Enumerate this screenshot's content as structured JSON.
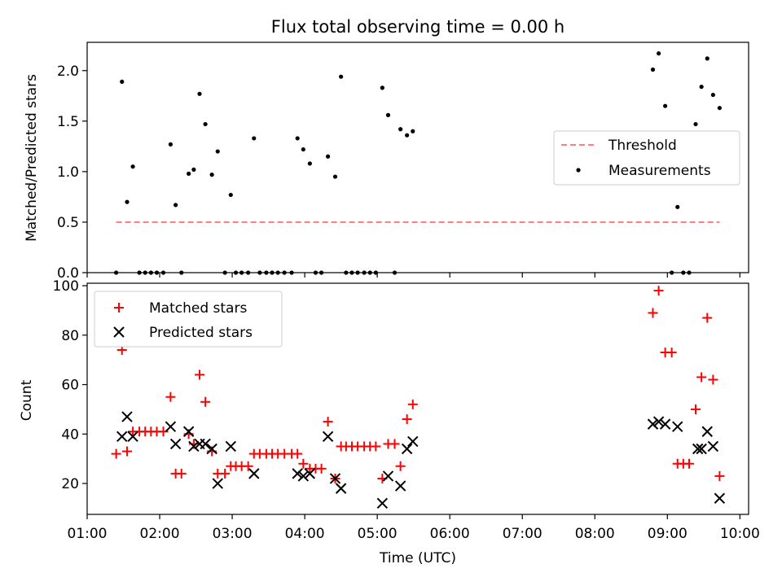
{
  "chart_data": [
    {
      "type": "line+scatter",
      "title": "Flux total observing time = 0.00 h",
      "ylabel": "Matched/Predicted stars",
      "ylim": [
        0,
        2.28
      ],
      "xlim": [
        1.0,
        10.12
      ],
      "yticks": [
        "0.0",
        "0.5",
        "1.0",
        "1.5",
        "2.0"
      ],
      "ytick_values": [
        0,
        0.5,
        1.0,
        1.5,
        2.0
      ],
      "legend": {
        "placement": "center-right",
        "threshold_label": "Threshold",
        "measurements_label": "Measurements"
      },
      "threshold": {
        "name": "Threshold",
        "value": 0.5,
        "x_start": 1.4,
        "x_end": 9.72,
        "color": "#ff7f7f",
        "style": "dashed"
      },
      "series": [
        {
          "name": "Measurements",
          "color": "#000000",
          "marker": "dot",
          "points": [
            [
              1.4,
              0
            ],
            [
              1.48,
              1.89
            ],
            [
              1.55,
              0.7
            ],
            [
              1.63,
              1.05
            ],
            [
              1.72,
              0
            ],
            [
              1.8,
              0
            ],
            [
              1.88,
              0
            ],
            [
              1.96,
              0
            ],
            [
              2.05,
              0
            ],
            [
              2.15,
              1.27
            ],
            [
              2.22,
              0.67
            ],
            [
              2.3,
              0
            ],
            [
              2.4,
              0.98
            ],
            [
              2.47,
              1.02
            ],
            [
              2.55,
              1.77
            ],
            [
              2.63,
              1.47
            ],
            [
              2.72,
              0.97
            ],
            [
              2.8,
              1.2
            ],
            [
              2.9,
              0
            ],
            [
              2.98,
              0.77
            ],
            [
              3.05,
              0
            ],
            [
              3.13,
              0
            ],
            [
              3.22,
              0
            ],
            [
              3.3,
              1.33
            ],
            [
              3.38,
              0
            ],
            [
              3.47,
              0
            ],
            [
              3.55,
              0
            ],
            [
              3.63,
              0
            ],
            [
              3.72,
              0
            ],
            [
              3.82,
              0
            ],
            [
              3.9,
              1.33
            ],
            [
              3.98,
              1.22
            ],
            [
              4.07,
              1.08
            ],
            [
              4.15,
              0
            ],
            [
              4.23,
              0
            ],
            [
              4.32,
              1.15
            ],
            [
              4.42,
              0.95
            ],
            [
              4.5,
              1.94
            ],
            [
              4.57,
              0
            ],
            [
              4.65,
              0
            ],
            [
              4.73,
              0
            ],
            [
              4.82,
              0
            ],
            [
              4.9,
              0
            ],
            [
              4.98,
              0
            ],
            [
              5.07,
              1.83
            ],
            [
              5.15,
              1.56
            ],
            [
              5.24,
              0
            ],
            [
              5.32,
              1.42
            ],
            [
              5.41,
              1.36
            ],
            [
              5.49,
              1.4
            ],
            [
              8.8,
              2.01
            ],
            [
              8.88,
              2.17
            ],
            [
              8.97,
              1.65
            ],
            [
              9.06,
              0
            ],
            [
              9.14,
              0.65
            ],
            [
              9.22,
              0
            ],
            [
              9.3,
              0
            ],
            [
              9.39,
              1.47
            ],
            [
              9.47,
              1.84
            ],
            [
              9.55,
              2.12
            ],
            [
              9.63,
              1.76
            ],
            [
              9.72,
              1.63
            ]
          ]
        }
      ]
    },
    {
      "type": "scatter",
      "ylabel": "Count",
      "xlabel": "Time (UTC)",
      "ylim": [
        7.5,
        101
      ],
      "xlim": [
        1.0,
        10.12
      ],
      "yticks": [
        "20",
        "40",
        "60",
        "80",
        "100"
      ],
      "ytick_values": [
        20,
        40,
        60,
        80,
        100
      ],
      "xticks": [
        "01:00",
        "02:00",
        "03:00",
        "04:00",
        "05:00",
        "06:00",
        "07:00",
        "08:00",
        "09:00",
        "10:00"
      ],
      "xtick_values": [
        1,
        2,
        3,
        4,
        5,
        6,
        7,
        8,
        9,
        10
      ],
      "legend": {
        "placement": "top-left"
      },
      "series": [
        {
          "name": "Matched stars",
          "color": "#ff0000",
          "marker": "plus",
          "points": [
            [
              1.4,
              32
            ],
            [
              1.48,
              74
            ],
            [
              1.55,
              33
            ],
            [
              1.63,
              41
            ],
            [
              1.72,
              41
            ],
            [
              1.8,
              41
            ],
            [
              1.88,
              41
            ],
            [
              1.96,
              41
            ],
            [
              2.05,
              41
            ],
            [
              2.15,
              55
            ],
            [
              2.22,
              24
            ],
            [
              2.3,
              24
            ],
            [
              2.4,
              40
            ],
            [
              2.47,
              36
            ],
            [
              2.55,
              64
            ],
            [
              2.63,
              53
            ],
            [
              2.72,
              33
            ],
            [
              2.8,
              24
            ],
            [
              2.9,
              24
            ],
            [
              2.98,
              27
            ],
            [
              3.05,
              27
            ],
            [
              3.13,
              27
            ],
            [
              3.22,
              27
            ],
            [
              3.3,
              32
            ],
            [
              3.38,
              32
            ],
            [
              3.47,
              32
            ],
            [
              3.55,
              32
            ],
            [
              3.63,
              32
            ],
            [
              3.72,
              32
            ],
            [
              3.82,
              32
            ],
            [
              3.9,
              32
            ],
            [
              3.98,
              28
            ],
            [
              4.07,
              26
            ],
            [
              4.15,
              26
            ],
            [
              4.23,
              26
            ],
            [
              4.32,
              45
            ],
            [
              4.42,
              22
            ],
            [
              4.5,
              35
            ],
            [
              4.57,
              35
            ],
            [
              4.65,
              35
            ],
            [
              4.73,
              35
            ],
            [
              4.82,
              35
            ],
            [
              4.9,
              35
            ],
            [
              4.98,
              35
            ],
            [
              5.07,
              22
            ],
            [
              5.15,
              36
            ],
            [
              5.24,
              36
            ],
            [
              5.32,
              27
            ],
            [
              5.41,
              46
            ],
            [
              5.49,
              52
            ],
            [
              8.8,
              89
            ],
            [
              8.88,
              98
            ],
            [
              8.97,
              73
            ],
            [
              9.06,
              73
            ],
            [
              9.14,
              28
            ],
            [
              9.22,
              28
            ],
            [
              9.3,
              28
            ],
            [
              9.39,
              50
            ],
            [
              9.47,
              63
            ],
            [
              9.55,
              87
            ],
            [
              9.63,
              62
            ],
            [
              9.72,
              23
            ]
          ]
        },
        {
          "name": "Predicted stars",
          "color": "#000000",
          "marker": "x",
          "points": [
            [
              1.48,
              39
            ],
            [
              1.55,
              47
            ],
            [
              1.63,
              39
            ],
            [
              2.15,
              43
            ],
            [
              2.22,
              36
            ],
            [
              2.4,
              41
            ],
            [
              2.47,
              35
            ],
            [
              2.55,
              36
            ],
            [
              2.63,
              36
            ],
            [
              2.72,
              34
            ],
            [
              2.8,
              20
            ],
            [
              2.98,
              35
            ],
            [
              3.3,
              24
            ],
            [
              3.9,
              24
            ],
            [
              3.98,
              23
            ],
            [
              4.07,
              24
            ],
            [
              4.32,
              39
            ],
            [
              4.42,
              22
            ],
            [
              4.5,
              18
            ],
            [
              5.07,
              12
            ],
            [
              5.15,
              23
            ],
            [
              5.32,
              19
            ],
            [
              5.41,
              34
            ],
            [
              5.49,
              37
            ],
            [
              8.8,
              44
            ],
            [
              8.88,
              45
            ],
            [
              8.97,
              44
            ],
            [
              9.14,
              43
            ],
            [
              9.47,
              34
            ],
            [
              9.55,
              41
            ],
            [
              9.63,
              35
            ],
            [
              9.72,
              14
            ],
            [
              9.42,
              34
            ]
          ]
        }
      ]
    }
  ]
}
